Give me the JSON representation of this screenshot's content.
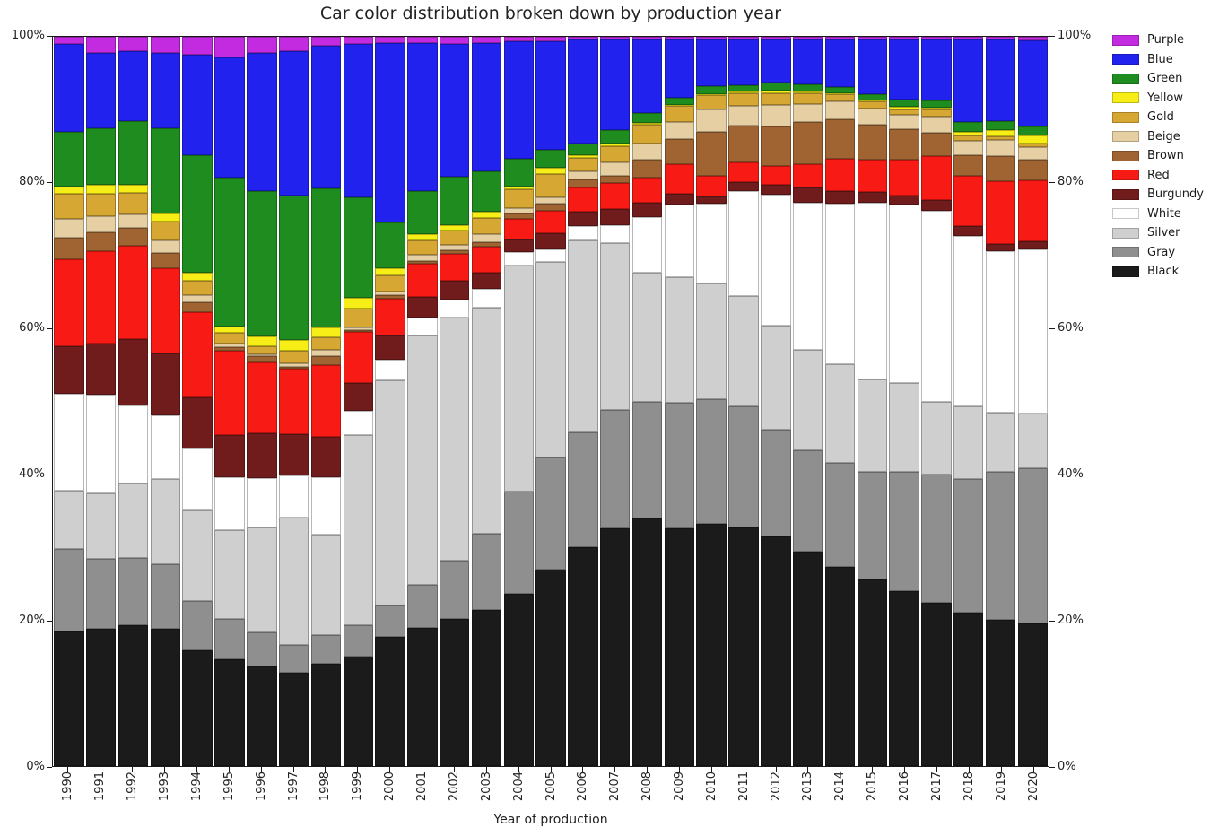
{
  "title": "Car color distribution broken down by production year",
  "axes": {
    "xlabel": "Year of production",
    "ylim": [
      0,
      100
    ],
    "yticks": [
      "0%",
      "20%",
      "40%",
      "60%",
      "80%",
      "100%"
    ]
  },
  "legend": {
    "position": "upper-right-outside",
    "items_top_to_bottom": [
      {
        "label": "Purple",
        "color": "#c32be0"
      },
      {
        "label": "Blue",
        "color": "#2222ef"
      },
      {
        "label": "Green",
        "color": "#1f8c1f"
      },
      {
        "label": "Yellow",
        "color": "#f7ee17"
      },
      {
        "label": "Gold",
        "color": "#d7a734"
      },
      {
        "label": "Beige",
        "color": "#e5cfa3"
      },
      {
        "label": "Brown",
        "color": "#a06432"
      },
      {
        "label": "Red",
        "color": "#f81b15"
      },
      {
        "label": "Burgundy",
        "color": "#701c1c"
      },
      {
        "label": "White",
        "color": "#ffffff"
      },
      {
        "label": "Silver",
        "color": "#cfcfcf"
      },
      {
        "label": "Gray",
        "color": "#8f8f8f"
      },
      {
        "label": "Black",
        "color": "#1b1b1b"
      }
    ]
  },
  "chart_data": {
    "type": "bar",
    "stacked": true,
    "normalized": "percent",
    "grid": false,
    "title": "Car color distribution broken down by production year",
    "xlabel": "Year of production",
    "ylabel": "",
    "ylim": [
      0,
      100
    ],
    "yticks": [
      "0%",
      "20%",
      "40%",
      "60%",
      "80%",
      "100%"
    ],
    "legend_position": "upper right outside",
    "categories": [
      "1990",
      "1991",
      "1992",
      "1993",
      "1994",
      "1995",
      "1996",
      "1997",
      "1998",
      "1999",
      "2000",
      "2001",
      "2002",
      "2003",
      "2004",
      "2005",
      "2006",
      "2007",
      "2008",
      "2009",
      "2010",
      "2011",
      "2012",
      "2013",
      "2014",
      "2015",
      "2016",
      "2017",
      "2018",
      "2019",
      "2020"
    ],
    "stack_order": "bottom-to-top",
    "series": [
      {
        "name": "Black",
        "color": "#1b1b1b",
        "values": [
          18.5,
          18.8,
          19.3,
          18.8,
          15.9,
          14.6,
          13.7,
          12.8,
          14.0,
          15.0,
          17.7,
          19.0,
          20.2,
          21.4,
          23.6,
          27.0,
          30.0,
          32.6,
          33.9,
          32.6,
          33.2,
          32.7,
          31.5,
          29.4,
          27.3,
          25.6,
          24.0,
          22.4,
          21.0,
          20.0,
          19.6
        ]
      },
      {
        "name": "Gray",
        "color": "#8f8f8f",
        "values": [
          11.3,
          9.6,
          9.2,
          8.9,
          6.7,
          5.6,
          4.6,
          3.8,
          4.0,
          4.3,
          4.3,
          5.9,
          8.0,
          10.5,
          14.1,
          15.3,
          15.8,
          16.2,
          16.1,
          17.2,
          17.1,
          16.6,
          14.6,
          13.9,
          14.3,
          14.8,
          16.4,
          17.6,
          18.4,
          20.4,
          21.2
        ]
      },
      {
        "name": "Silver",
        "color": "#cfcfcf",
        "values": [
          8.0,
          9.0,
          10.2,
          11.7,
          12.4,
          12.1,
          14.4,
          17.5,
          13.7,
          26.1,
          30.9,
          34.2,
          33.3,
          31.0,
          31.0,
          26.8,
          26.3,
          22.9,
          17.7,
          17.2,
          15.9,
          15.1,
          14.3,
          13.8,
          13.5,
          12.6,
          12.1,
          9.9,
          9.9,
          8.1,
          7.6
        ]
      },
      {
        "name": "White",
        "color": "#ffffff",
        "values": [
          13.2,
          13.5,
          10.8,
          8.7,
          8.6,
          7.3,
          6.8,
          5.8,
          7.9,
          3.3,
          2.8,
          2.4,
          2.5,
          2.6,
          1.8,
          1.8,
          2.0,
          2.5,
          7.6,
          10.0,
          10.9,
          14.5,
          17.9,
          20.1,
          22.0,
          24.2,
          24.5,
          26.3,
          23.4,
          22.1,
          22.4
        ]
      },
      {
        "name": "Burgundy",
        "color": "#701c1c",
        "values": [
          6.6,
          7.0,
          9.0,
          8.5,
          7.0,
          5.8,
          6.2,
          5.6,
          5.6,
          3.8,
          3.4,
          2.8,
          2.5,
          2.2,
          1.7,
          2.2,
          1.9,
          2.2,
          1.9,
          1.5,
          1.0,
          1.2,
          1.4,
          2.1,
          1.8,
          1.5,
          1.2,
          1.4,
          1.4,
          1.0,
          1.2
        ]
      },
      {
        "name": "Red",
        "color": "#f81b15",
        "values": [
          11.9,
          12.7,
          12.9,
          11.7,
          11.6,
          11.6,
          9.7,
          9.0,
          9.8,
          7.0,
          5.0,
          4.6,
          3.7,
          3.5,
          2.8,
          3.1,
          3.4,
          3.6,
          3.5,
          4.0,
          2.9,
          2.7,
          2.6,
          3.2,
          4.4,
          4.5,
          4.9,
          6.0,
          6.9,
          8.6,
          8.3
        ]
      },
      {
        "name": "Brown",
        "color": "#a06432",
        "values": [
          3.0,
          2.6,
          2.4,
          2.1,
          1.4,
          0.5,
          0.8,
          0.3,
          1.2,
          0.3,
          0.5,
          0.4,
          0.5,
          0.7,
          0.8,
          0.9,
          1.1,
          1.0,
          2.4,
          3.5,
          6.0,
          5.0,
          5.4,
          5.8,
          5.4,
          4.8,
          4.3,
          3.3,
          2.8,
          3.4,
          2.9
        ]
      },
      {
        "name": "Beige",
        "color": "#e5cfa3",
        "values": [
          2.6,
          2.2,
          1.8,
          1.7,
          1.0,
          0.5,
          0.3,
          0.4,
          0.9,
          0.3,
          0.5,
          0.8,
          0.8,
          1.0,
          0.7,
          0.9,
          1.0,
          1.8,
          2.3,
          2.3,
          3.0,
          2.8,
          3.0,
          2.5,
          2.4,
          2.2,
          1.9,
          2.1,
          2.0,
          2.3,
          1.7
        ]
      },
      {
        "name": "Gold",
        "color": "#d7a734",
        "values": [
          3.4,
          3.1,
          3.0,
          2.6,
          2.0,
          1.4,
          1.1,
          1.8,
          1.7,
          2.6,
          2.2,
          2.0,
          2.0,
          2.3,
          2.6,
          3.2,
          1.9,
          2.2,
          2.5,
          2.2,
          2.0,
          1.7,
          1.6,
          1.5,
          1.0,
          0.9,
          0.8,
          1.0,
          0.7,
          0.4,
          0.5
        ]
      },
      {
        "name": "Yellow",
        "color": "#f7ee17",
        "values": [
          1.0,
          1.2,
          1.1,
          1.1,
          1.0,
          0.9,
          1.3,
          1.4,
          1.3,
          1.5,
          1.0,
          0.9,
          0.7,
          0.8,
          0.4,
          0.8,
          0.4,
          0.4,
          0.3,
          0.2,
          0.2,
          0.2,
          0.3,
          0.2,
          0.2,
          0.2,
          0.3,
          0.3,
          0.5,
          0.9,
          1.1
        ]
      },
      {
        "name": "Green",
        "color": "#1f8c1f",
        "values": [
          7.5,
          7.8,
          8.7,
          11.7,
          16.2,
          20.4,
          20.0,
          19.9,
          19.1,
          13.8,
          6.2,
          5.8,
          6.6,
          5.6,
          3.8,
          2.5,
          1.6,
          1.8,
          1.4,
          0.9,
          1.0,
          0.9,
          1.1,
          1.0,
          0.8,
          0.8,
          1.0,
          1.0,
          1.3,
          1.3,
          1.2
        ]
      },
      {
        "name": "Blue",
        "color": "#2222ef",
        "values": [
          12.0,
          10.3,
          9.6,
          10.3,
          13.7,
          16.5,
          18.9,
          19.7,
          19.6,
          21.0,
          24.7,
          20.4,
          18.2,
          17.6,
          16.1,
          14.9,
          14.2,
          12.4,
          10.0,
          8.1,
          6.5,
          6.3,
          6.0,
          6.2,
          6.6,
          7.6,
          8.3,
          8.4,
          11.3,
          11.1,
          11.8
        ]
      },
      {
        "name": "Purple",
        "color": "#c32be0",
        "values": [
          1.0,
          2.2,
          2.0,
          2.2,
          2.5,
          2.8,
          2.2,
          2.0,
          1.2,
          1.0,
          0.8,
          0.8,
          1.0,
          0.8,
          0.6,
          0.6,
          0.4,
          0.4,
          0.4,
          0.3,
          0.3,
          0.3,
          0.3,
          0.3,
          0.3,
          0.3,
          0.3,
          0.3,
          0.4,
          0.4,
          0.5
        ]
      }
    ]
  }
}
